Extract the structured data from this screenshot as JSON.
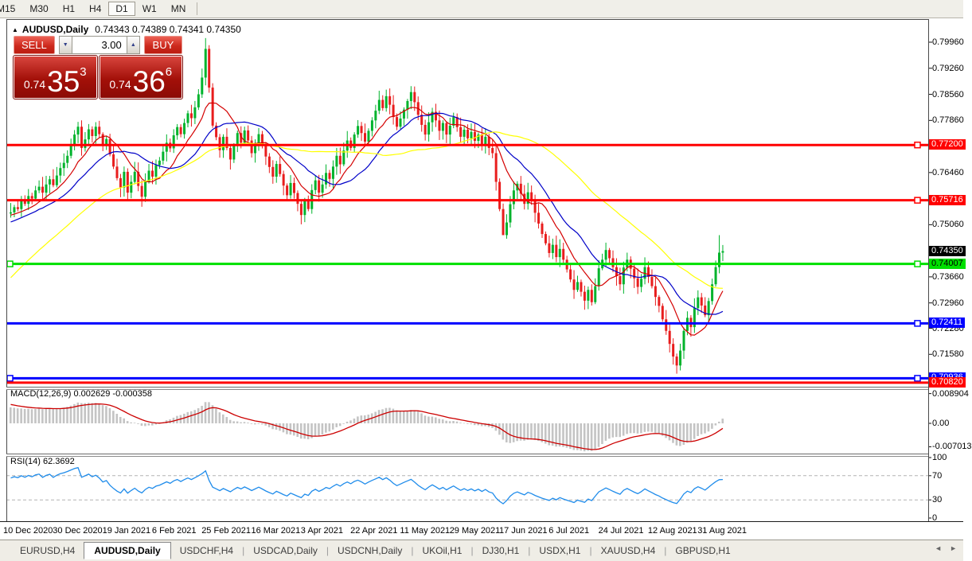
{
  "toolbar": {
    "items": [
      {
        "label": "M15",
        "active": false
      },
      {
        "label": "M30",
        "active": false
      },
      {
        "label": "H1",
        "active": false
      },
      {
        "label": "H4",
        "active": false
      },
      {
        "label": "D1",
        "active": true
      },
      {
        "label": "W1",
        "active": false
      },
      {
        "label": "MN",
        "active": false
      }
    ]
  },
  "header": {
    "collapse_icon": "▲",
    "title": "AUDUSD,Daily",
    "ohlc_text": "0.74343 0.74389 0.74341 0.74350"
  },
  "trade_panel": {
    "sell_button": "SELL",
    "buy_button": "BUY",
    "volume": "3.00",
    "spin_down_icon": "▼",
    "spin_up_icon": "▲",
    "sell_price": {
      "prefix": "0.74",
      "big": "35",
      "sup": "3"
    },
    "buy_price": {
      "prefix": "0.74",
      "big": "36",
      "sup": "6"
    }
  },
  "macd_panel": {
    "label": "MACD(12,26,9) 0.002629 -0.000358"
  },
  "rsi_panel": {
    "label": "RSI(14) 62.3692"
  },
  "tabs": {
    "items": [
      {
        "label": "EURUSD,H4",
        "active": false
      },
      {
        "label": "AUDUSD,Daily",
        "active": true
      },
      {
        "label": "USDCHF,H4",
        "active": false
      },
      {
        "label": "USDCAD,Daily",
        "active": false
      },
      {
        "label": "USDCNH,Daily",
        "active": false
      },
      {
        "label": "UKOil,H1",
        "active": false
      },
      {
        "label": "DJ30,H1",
        "active": false
      },
      {
        "label": "USDX,H1",
        "active": false
      },
      {
        "label": "XAUUSD,H4",
        "active": false
      },
      {
        "label": "GBPUSD,H1",
        "active": false
      }
    ],
    "nav_left_icon": "◄",
    "nav_right_icon": "►"
  },
  "chart_data": {
    "type": "candlestick",
    "symbol": "AUDUSD",
    "timeframe": "Daily",
    "ohlc": {
      "open": 0.74343,
      "high": 0.74389,
      "low": 0.74341,
      "close": 0.7435
    },
    "bull_color": "#00b32c",
    "bear_color": "#e81d1d",
    "y_axis_ticks": [
      {
        "label": "0.79960",
        "value": 0.7996
      },
      {
        "label": "0.79260",
        "value": 0.7926
      },
      {
        "label": "0.78560",
        "value": 0.7856
      },
      {
        "label": "0.77860",
        "value": 0.7786
      },
      {
        "label": "0.76460",
        "value": 0.7646
      },
      {
        "label": "0.75060",
        "value": 0.7506
      },
      {
        "label": "0.73660",
        "value": 0.7366
      },
      {
        "label": "0.72960",
        "value": 0.7296
      },
      {
        "label": "0.72280",
        "value": 0.7228
      },
      {
        "label": "0.71580",
        "value": 0.7158
      }
    ],
    "levels": [
      {
        "price": 0.772,
        "color": "#ff0000",
        "label": "0.77200",
        "label_fg": "#ffffff",
        "handles": [
          "right"
        ]
      },
      {
        "price": 0.75716,
        "color": "#ff0000",
        "label": "0.75716",
        "label_fg": "#ffffff",
        "handles": [
          "right"
        ]
      },
      {
        "price": 0.74007,
        "color": "#00e000",
        "label": "0.74007",
        "label_fg": "#000000",
        "handles": [
          "left",
          "right"
        ]
      },
      {
        "price": 0.72411,
        "color": "#0000ff",
        "label": "0.72411",
        "label_fg": "#ffffff",
        "handles": [
          "right"
        ]
      },
      {
        "price": 0.70936,
        "color": "#0000ff",
        "label": "0.70936",
        "label_fg": "#ffffff",
        "handles": [
          "left",
          "right"
        ]
      },
      {
        "price": 0.7082,
        "color": "#ff0000",
        "label": "0.70820",
        "label_fg": "#ffffff",
        "handles": []
      }
    ],
    "current_price": {
      "value": 0.7435,
      "label": "0.74350",
      "bg": "#000000",
      "fg": "#ffffff"
    },
    "x_axis_dates": [
      "10 Dec 2020",
      "30 Dec 2020",
      "19 Jan 2021",
      "6 Feb 2021",
      "25 Feb 2021",
      "16 Mar 2021",
      "3 Apr 2021",
      "22 Apr 2021",
      "11 May 2021",
      "29 May 2021",
      "17 Jun 2021",
      "6 Jul 2021",
      "24 Jul 2021",
      "12 Aug 2021",
      "31 Aug 2021"
    ],
    "candles_per_tick": 14,
    "prehistory": [
      0.7052,
      0.7075,
      0.7061,
      0.7098,
      0.7121,
      0.7105,
      0.7138,
      0.7162,
      0.7149,
      0.7181,
      0.7203,
      0.7188,
      0.7221,
      0.7246,
      0.7229,
      0.7261,
      0.7288,
      0.727,
      0.7302,
      0.7328,
      0.7311,
      0.7342,
      0.7367,
      0.7349,
      0.7381,
      0.7406,
      0.739,
      0.7421,
      0.7447,
      0.7429,
      0.7461,
      0.7482,
      0.7468,
      0.7493,
      0.7477,
      0.7502,
      0.7489,
      0.7512,
      0.7498,
      0.7521,
      0.7507,
      0.7528,
      0.7515,
      0.7536,
      0.7522,
      0.754,
      0.7527,
      0.7544,
      0.7531,
      0.7536
    ],
    "closes": [
      0.7539,
      0.7553,
      0.7548,
      0.757,
      0.7562,
      0.7583,
      0.7576,
      0.7598,
      0.7608,
      0.7592,
      0.7614,
      0.7628,
      0.7612,
      0.7638,
      0.7658,
      0.7672,
      0.7691,
      0.7718,
      0.7748,
      0.7769,
      0.7712,
      0.7735,
      0.7762,
      0.7744,
      0.7769,
      0.7749,
      0.7718,
      0.7736,
      0.7695,
      0.7662,
      0.7631,
      0.7606,
      0.7648,
      0.7592,
      0.7621,
      0.7648,
      0.761,
      0.7581,
      0.7622,
      0.7651,
      0.7635,
      0.7666,
      0.7678,
      0.7702,
      0.7726,
      0.7711,
      0.7746,
      0.7768,
      0.7749,
      0.7779,
      0.7805,
      0.7792,
      0.7821,
      0.7856,
      0.7901,
      0.7978,
      0.7874,
      0.7772,
      0.7741,
      0.7706,
      0.7742,
      0.7712,
      0.7681,
      0.7718,
      0.7752,
      0.7726,
      0.7759,
      0.7732,
      0.7698,
      0.7722,
      0.7749,
      0.7721,
      0.7689,
      0.7661,
      0.7635,
      0.7669,
      0.7642,
      0.7611,
      0.7585,
      0.7618,
      0.7591,
      0.7562,
      0.7532,
      0.7571,
      0.7548,
      0.7599,
      0.7625,
      0.7592,
      0.7614,
      0.7645,
      0.7629,
      0.7662,
      0.7691,
      0.7668,
      0.7705,
      0.7732,
      0.7712,
      0.7748,
      0.7771,
      0.7752,
      0.7729,
      0.7758,
      0.7786,
      0.7812,
      0.7841,
      0.7819,
      0.7851,
      0.7828,
      0.7795,
      0.7769,
      0.7791,
      0.7815,
      0.7838,
      0.7862,
      0.7835,
      0.7801,
      0.7774,
      0.7748,
      0.7781,
      0.7809,
      0.7786,
      0.7758,
      0.7779,
      0.7748,
      0.7772,
      0.7795,
      0.7768,
      0.7742,
      0.7761,
      0.7738,
      0.7755,
      0.7731,
      0.7748,
      0.7722,
      0.7742,
      0.7712,
      0.7698,
      0.7621,
      0.7548,
      0.7478,
      0.7512,
      0.7561,
      0.7598,
      0.7616,
      0.7589,
      0.7562,
      0.7593,
      0.7571,
      0.7538,
      0.7509,
      0.7481,
      0.7456,
      0.743,
      0.7452,
      0.7419,
      0.7441,
      0.7412,
      0.7386,
      0.7359,
      0.7331,
      0.7352,
      0.7326,
      0.7302,
      0.7331,
      0.7298,
      0.7341,
      0.7389,
      0.7412,
      0.7438,
      0.7416,
      0.7392,
      0.7368,
      0.7346,
      0.7391,
      0.7412,
      0.7388,
      0.7362,
      0.7339,
      0.7361,
      0.7392,
      0.7366,
      0.7341,
      0.7312,
      0.7288,
      0.7252,
      0.7221,
      0.7186,
      0.7152,
      0.7128,
      0.7168,
      0.7221,
      0.7256,
      0.7231,
      0.7282,
      0.7311,
      0.7289,
      0.7263,
      0.7301,
      0.7346,
      0.7392,
      0.7431,
      0.7435
    ],
    "wick_overrides": {
      "19": {
        "h": 0.7782
      },
      "55": {
        "h": 0.8007
      },
      "139": {
        "l": 0.7478
      },
      "164": {
        "l": 0.7289
      },
      "188": {
        "l": 0.7106
      },
      "200": {
        "h": 0.7478
      }
    },
    "moving_averages": [
      {
        "period": 10,
        "color": "#d40000"
      },
      {
        "period": 20,
        "color": "#0000c8"
      },
      {
        "period": 50,
        "color": "#ffff00"
      }
    ],
    "macd": {
      "fast": 12,
      "slow": 26,
      "signal": 9,
      "hist_color": "#c4c4c4",
      "signal_color": "#cc0000",
      "current_values": [
        0.002629,
        -0.000358
      ],
      "axis": [
        {
          "label": "0.008904",
          "value": 0.008904
        },
        {
          "label": "0.00",
          "value": 0
        },
        {
          "label": "-0.007013",
          "value": -0.007013
        }
      ]
    },
    "rsi": {
      "period": 14,
      "color": "#1f8ceb",
      "current_value": 62.3692,
      "level_lines": [
        70,
        30
      ],
      "axis": [
        {
          "label": "100",
          "value": 100
        },
        {
          "label": "70",
          "value": 70
        },
        {
          "label": "30",
          "value": 30
        },
        {
          "label": "0",
          "value": 0
        }
      ]
    }
  }
}
